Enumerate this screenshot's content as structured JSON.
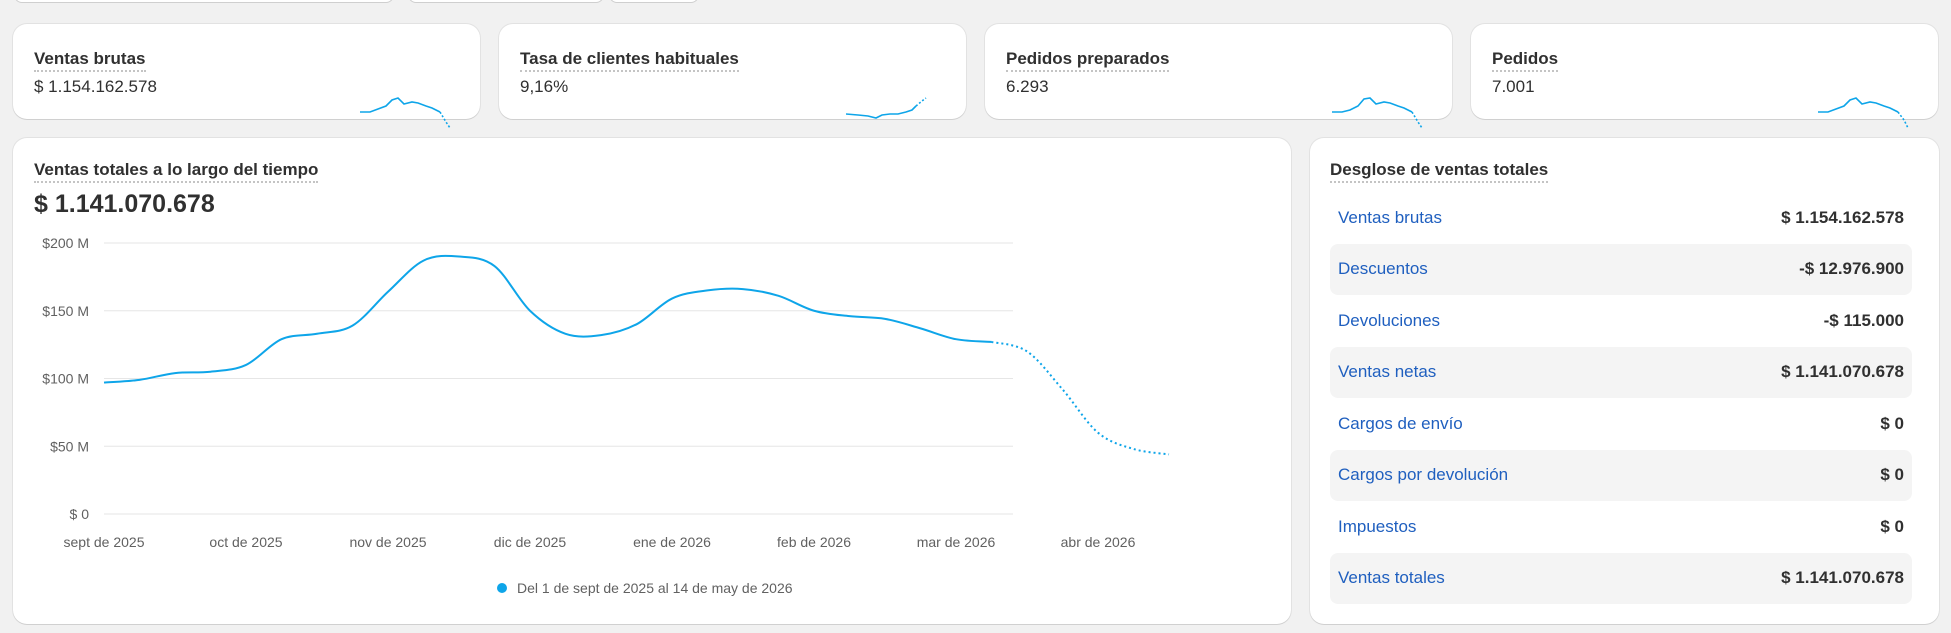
{
  "metrics": [
    {
      "label": "Ventas brutas",
      "value": "$ 1.154.162.578"
    },
    {
      "label": "Tasa de clientes habituales",
      "value": "9,16%"
    },
    {
      "label": "Pedidos preparados",
      "value": "6.293"
    },
    {
      "label": "Pedidos",
      "value": "7.001"
    }
  ],
  "sales_chart": {
    "title": "Ventas totales a lo largo del tiempo",
    "total": "$ 1.141.070.678",
    "legend": "Del 1 de sept de 2025 al 14 de may de 2026"
  },
  "chart_data": {
    "type": "line",
    "title": "Ventas totales a lo largo del tiempo",
    "x_labels": [
      "sept de 2025",
      "oct de 2025",
      "nov de 2025",
      "dic de 2025",
      "ene de 2026",
      "feb de 2026",
      "mar de 2026",
      "abr de 2026"
    ],
    "y_ticks": [
      "$ 0",
      "$50 M",
      "$100 M",
      "$150 M",
      "$200 M"
    ],
    "ylim": [
      0,
      200
    ],
    "yunit": "M",
    "series": [
      {
        "name": "Del 1 de sept de 2025 al 14 de may de 2026",
        "points": [
          [
            0.0,
            97
          ],
          [
            0.25,
            99
          ],
          [
            0.5,
            104
          ],
          [
            0.75,
            105
          ],
          [
            1.0,
            110
          ],
          [
            1.25,
            129
          ],
          [
            1.5,
            133
          ],
          [
            1.75,
            139
          ],
          [
            2.0,
            164
          ],
          [
            2.25,
            187
          ],
          [
            2.5,
            190
          ],
          [
            2.75,
            183
          ],
          [
            3.0,
            150
          ],
          [
            3.25,
            133
          ],
          [
            3.5,
            132
          ],
          [
            3.75,
            140
          ],
          [
            4.0,
            159
          ],
          [
            4.25,
            165
          ],
          [
            4.5,
            166
          ],
          [
            4.75,
            161
          ],
          [
            5.0,
            150
          ],
          [
            5.25,
            146
          ],
          [
            5.5,
            144
          ],
          [
            5.75,
            137
          ],
          [
            6.0,
            129
          ],
          [
            6.25,
            127
          ]
        ],
        "projection": [
          [
            6.25,
            127
          ],
          [
            6.5,
            120
          ],
          [
            6.75,
            92
          ],
          [
            7.0,
            60
          ],
          [
            7.25,
            48
          ],
          [
            7.5,
            44
          ]
        ]
      }
    ],
    "grid": true,
    "legend_position": "bottom-center"
  },
  "breakdown": {
    "title": "Desglose de ventas totales",
    "rows": [
      {
        "name": "Ventas brutas",
        "amount": "$ 1.154.162.578"
      },
      {
        "name": "Descuentos",
        "amount": "-$ 12.976.900"
      },
      {
        "name": "Devoluciones",
        "amount": "-$ 115.000"
      },
      {
        "name": "Ventas netas",
        "amount": "$ 1.141.070.678"
      },
      {
        "name": "Cargos de envío",
        "amount": "$ 0"
      },
      {
        "name": "Cargos por devolución",
        "amount": "$ 0"
      },
      {
        "name": "Impuestos",
        "amount": "$ 0"
      },
      {
        "name": "Ventas totales",
        "amount": "$ 1.141.070.678"
      }
    ]
  },
  "colors": {
    "accent": "#0ea5e9",
    "link": "#1f5fbf"
  }
}
